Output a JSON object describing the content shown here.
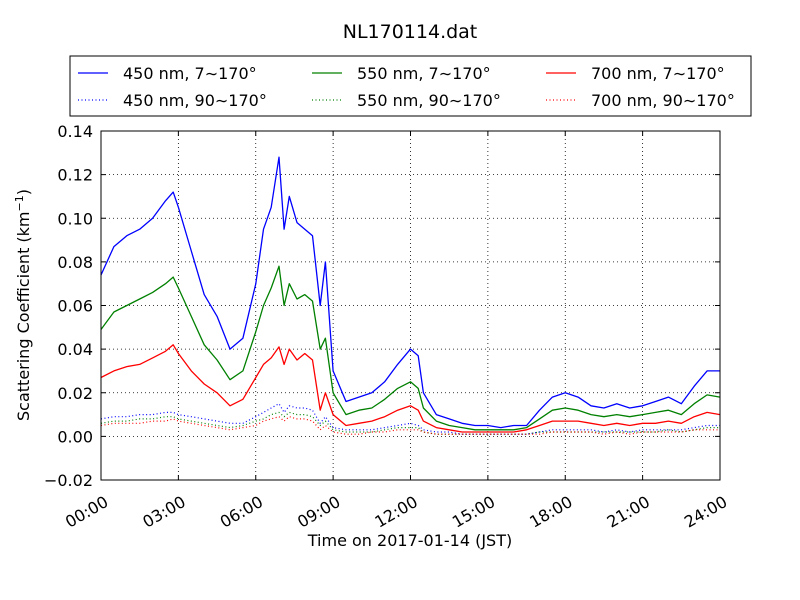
{
  "chart_data": {
    "type": "line",
    "title": "NL170114.dat",
    "xlabel": "Time on 2017-01-14 (JST)",
    "ylabel": "Scattering Coefficient (km",
    "ylabel_exp": "−1",
    "ylabel_close": ")",
    "xlim": [
      0,
      24
    ],
    "ylim": [
      -0.02,
      0.14
    ],
    "x_unit": "hours",
    "grid": true,
    "grid_style": "dotted",
    "legend_placement": "top, above plot, 3 columns",
    "x_tick_values": [
      0,
      3,
      6,
      9,
      12,
      15,
      18,
      21,
      24
    ],
    "x_tick_labels": [
      "00:00",
      "03:00",
      "06:00",
      "09:00",
      "12:00",
      "15:00",
      "18:00",
      "21:00",
      "24:00"
    ],
    "y_tick_values": [
      -0.02,
      0.0,
      0.02,
      0.04,
      0.06,
      0.08,
      0.1,
      0.12,
      0.14
    ],
    "y_tick_labels": [
      "−0.02",
      "0.00",
      "0.02",
      "0.04",
      "0.06",
      "0.08",
      "0.10",
      "0.12",
      "0.14"
    ],
    "x": [
      0,
      0.5,
      1,
      1.5,
      2,
      2.5,
      2.8,
      3,
      3.5,
      4,
      4.5,
      5,
      5.5,
      6,
      6.3,
      6.6,
      6.9,
      7.1,
      7.3,
      7.6,
      7.9,
      8.2,
      8.5,
      8.7,
      9,
      9.5,
      10,
      10.5,
      11,
      11.5,
      12,
      12.3,
      12.5,
      13,
      13.5,
      14,
      14.5,
      15,
      15.5,
      16,
      16.5,
      17,
      17.5,
      18,
      18.5,
      19,
      19.5,
      20,
      20.5,
      21,
      21.5,
      22,
      22.5,
      23,
      23.5,
      24
    ],
    "series": [
      {
        "name": "450 nm, 7∼170°",
        "color": "#0000ff",
        "style": "solid",
        "values": [
          0.074,
          0.087,
          0.092,
          0.095,
          0.1,
          0.108,
          0.112,
          0.105,
          0.085,
          0.065,
          0.055,
          0.04,
          0.045,
          0.07,
          0.095,
          0.105,
          0.128,
          0.095,
          0.11,
          0.098,
          0.095,
          0.092,
          0.06,
          0.08,
          0.03,
          0.016,
          0.018,
          0.02,
          0.025,
          0.033,
          0.04,
          0.037,
          0.02,
          0.01,
          0.008,
          0.006,
          0.005,
          0.005,
          0.004,
          0.005,
          0.005,
          0.012,
          0.018,
          0.02,
          0.018,
          0.014,
          0.013,
          0.015,
          0.013,
          0.014,
          0.016,
          0.018,
          0.015,
          0.023,
          0.03,
          0.03
        ]
      },
      {
        "name": "550 nm, 7∼170°",
        "color": "#008000",
        "style": "solid",
        "values": [
          0.049,
          0.057,
          0.06,
          0.063,
          0.066,
          0.07,
          0.073,
          0.068,
          0.055,
          0.042,
          0.035,
          0.026,
          0.03,
          0.048,
          0.06,
          0.068,
          0.078,
          0.06,
          0.07,
          0.063,
          0.065,
          0.062,
          0.04,
          0.045,
          0.02,
          0.01,
          0.012,
          0.013,
          0.017,
          0.022,
          0.025,
          0.022,
          0.013,
          0.007,
          0.005,
          0.004,
          0.003,
          0.003,
          0.003,
          0.003,
          0.004,
          0.008,
          0.012,
          0.013,
          0.012,
          0.01,
          0.009,
          0.01,
          0.009,
          0.01,
          0.011,
          0.012,
          0.01,
          0.015,
          0.019,
          0.018
        ]
      },
      {
        "name": "700 nm, 7∼170°",
        "color": "#ff0000",
        "style": "solid",
        "values": [
          0.027,
          0.03,
          0.032,
          0.033,
          0.036,
          0.039,
          0.042,
          0.038,
          0.03,
          0.024,
          0.02,
          0.014,
          0.017,
          0.027,
          0.033,
          0.036,
          0.041,
          0.033,
          0.04,
          0.035,
          0.038,
          0.035,
          0.012,
          0.02,
          0.01,
          0.005,
          0.006,
          0.007,
          0.009,
          0.012,
          0.014,
          0.012,
          0.007,
          0.004,
          0.003,
          0.002,
          0.002,
          0.002,
          0.002,
          0.002,
          0.003,
          0.005,
          0.007,
          0.007,
          0.007,
          0.006,
          0.005,
          0.006,
          0.005,
          0.006,
          0.006,
          0.007,
          0.006,
          0.009,
          0.011,
          0.01
        ]
      },
      {
        "name": "450 nm, 90∼170°",
        "color": "#0000ff",
        "style": "dotted",
        "values": [
          0.008,
          0.009,
          0.009,
          0.01,
          0.01,
          0.011,
          0.011,
          0.01,
          0.009,
          0.008,
          0.007,
          0.006,
          0.006,
          0.009,
          0.011,
          0.013,
          0.015,
          0.011,
          0.014,
          0.013,
          0.013,
          0.012,
          0.006,
          0.009,
          0.004,
          0.003,
          0.003,
          0.003,
          0.004,
          0.005,
          0.006,
          0.005,
          0.003,
          0.002,
          0.002,
          0.001,
          0.001,
          0.001,
          0.001,
          0.001,
          0.001,
          0.002,
          0.003,
          0.003,
          0.003,
          0.003,
          0.002,
          0.003,
          0.002,
          0.003,
          0.003,
          0.003,
          0.003,
          0.004,
          0.005,
          0.005
        ]
      },
      {
        "name": "550 nm, 90∼170°",
        "color": "#008000",
        "style": "dotted",
        "values": [
          0.006,
          0.007,
          0.007,
          0.008,
          0.008,
          0.009,
          0.009,
          0.008,
          0.007,
          0.006,
          0.005,
          0.004,
          0.005,
          0.007,
          0.008,
          0.01,
          0.011,
          0.009,
          0.011,
          0.01,
          0.01,
          0.009,
          0.005,
          0.007,
          0.003,
          0.002,
          0.002,
          0.002,
          0.003,
          0.004,
          0.004,
          0.004,
          0.002,
          0.001,
          0.001,
          0.001,
          0.001,
          0.001,
          0.001,
          0.001,
          0.001,
          0.002,
          0.002,
          0.002,
          0.002,
          0.002,
          0.002,
          0.002,
          0.002,
          0.002,
          0.002,
          0.003,
          0.002,
          0.003,
          0.004,
          0.004
        ]
      },
      {
        "name": "700 nm, 90∼170°",
        "color": "#ff0000",
        "style": "dotted",
        "values": [
          0.005,
          0.006,
          0.006,
          0.006,
          0.007,
          0.007,
          0.008,
          0.007,
          0.006,
          0.005,
          0.004,
          0.003,
          0.004,
          0.005,
          0.007,
          0.008,
          0.009,
          0.007,
          0.009,
          0.008,
          0.008,
          0.007,
          0.003,
          0.005,
          0.002,
          0.001,
          0.001,
          0.002,
          0.002,
          0.003,
          0.003,
          0.003,
          0.002,
          0.001,
          0.001,
          0.001,
          0.001,
          0.001,
          0.001,
          0.001,
          0.001,
          0.001,
          0.002,
          0.002,
          0.002,
          0.002,
          0.001,
          0.002,
          0.001,
          0.002,
          0.002,
          0.002,
          0.002,
          0.003,
          0.003,
          0.003
        ]
      }
    ],
    "legend_order": [
      0,
      1,
      2,
      3,
      4,
      5
    ]
  }
}
